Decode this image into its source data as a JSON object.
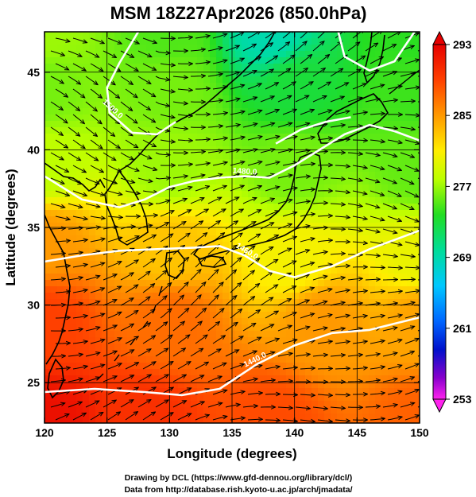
{
  "figure": {
    "title": "MSM 18Z27Apr2026 (850.0hPa)",
    "xlabel": "Longitude (degrees)",
    "ylabel": "Latitude  (degrees)",
    "credit_line1": "Drawing by DCL (https://www.gfd-dennou.org/library/dcl/)",
    "credit_line2": "Data from http://database.rish.kyoto-u.ac.jp/arch/jmadata/"
  },
  "chart_data": {
    "type": "heatmap",
    "xlim": [
      120,
      150
    ],
    "ylim": [
      22.4,
      47.6
    ],
    "xticks": [
      120,
      125,
      130,
      135,
      140,
      145,
      150
    ],
    "yticks": [
      25,
      30,
      35,
      40,
      45
    ],
    "grid": true,
    "colorbar": {
      "range": [
        253,
        293
      ],
      "tick_values": [
        293,
        285,
        277,
        269,
        261,
        253
      ],
      "tick_labels": [
        "293",
        "285",
        "277",
        "269",
        "261",
        "253"
      ]
    },
    "contours": [
      {
        "label": "1440.0",
        "points": [
          [
            120,
            24.4
          ],
          [
            124,
            24.6
          ],
          [
            128,
            24.4
          ],
          [
            131,
            24.2
          ],
          [
            134,
            24.6
          ],
          [
            137,
            26.2
          ],
          [
            140,
            27.4
          ],
          [
            143,
            28.2
          ],
          [
            146,
            28.4
          ],
          [
            148,
            28.8
          ],
          [
            150,
            29.2
          ]
        ]
      },
      {
        "label": "1460.0",
        "points": [
          [
            120,
            32.8
          ],
          [
            123,
            33.2
          ],
          [
            126,
            33.5
          ],
          [
            129,
            33.6
          ],
          [
            132,
            33.7
          ],
          [
            134,
            33.8
          ],
          [
            136,
            33.2
          ],
          [
            138,
            32.2
          ],
          [
            140,
            31.8
          ],
          [
            143,
            32.5
          ],
          [
            146,
            33.6
          ],
          [
            150,
            34.8
          ]
        ]
      },
      {
        "label": "1480.0",
        "points": [
          [
            120,
            38.3
          ],
          [
            123,
            36.8
          ],
          [
            126,
            36.3
          ],
          [
            128,
            36.8
          ],
          [
            130,
            37.6
          ],
          [
            132,
            38.0
          ],
          [
            134,
            38.2
          ],
          [
            136,
            38.3
          ],
          [
            138,
            38.2
          ],
          [
            140,
            39.0
          ],
          [
            142,
            40.0
          ],
          [
            144,
            41.0
          ],
          [
            146,
            41.6
          ],
          [
            148,
            41.2
          ],
          [
            150,
            40.6
          ]
        ]
      },
      {
        "label": "1500.0",
        "points": [
          [
            127.5,
            47.6
          ],
          [
            126,
            45.6
          ],
          [
            125,
            44.0
          ],
          [
            125.2,
            42.4
          ],
          [
            127,
            41.1
          ],
          [
            129,
            41.0
          ],
          [
            130.5,
            41.8
          ]
        ]
      },
      {
        "label": "",
        "points": [
          [
            138.5,
            40.4
          ],
          [
            140.5,
            41.3
          ],
          [
            142.5,
            41.8
          ],
          [
            144.5,
            42.1
          ]
        ]
      },
      {
        "label": "",
        "points": [
          [
            143.5,
            47.6
          ],
          [
            144,
            46.0
          ],
          [
            146,
            45.1
          ],
          [
            148,
            45.7
          ],
          [
            149.6,
            47.6
          ]
        ]
      }
    ],
    "temperature_anchors": [
      {
        "lon": 120,
        "lat": 22.4,
        "t": 292
      },
      {
        "lon": 128,
        "lat": 22.4,
        "t": 290
      },
      {
        "lon": 138,
        "lat": 22.4,
        "t": 288.5
      },
      {
        "lon": 150,
        "lat": 22.4,
        "t": 287.5
      },
      {
        "lon": 120,
        "lat": 29,
        "t": 289
      },
      {
        "lon": 130,
        "lat": 29,
        "t": 287
      },
      {
        "lon": 142,
        "lat": 29,
        "t": 285
      },
      {
        "lon": 150,
        "lat": 29,
        "t": 284.5
      },
      {
        "lon": 120,
        "lat": 34,
        "t": 285
      },
      {
        "lon": 130,
        "lat": 33.5,
        "t": 283
      },
      {
        "lon": 140,
        "lat": 33,
        "t": 280.5
      },
      {
        "lon": 150,
        "lat": 33,
        "t": 280
      },
      {
        "lon": 120,
        "lat": 39,
        "t": 278
      },
      {
        "lon": 130,
        "lat": 39,
        "t": 277
      },
      {
        "lon": 140,
        "lat": 39,
        "t": 276
      },
      {
        "lon": 150,
        "lat": 39,
        "t": 275.5
      },
      {
        "lon": 120,
        "lat": 44,
        "t": 276
      },
      {
        "lon": 130,
        "lat": 44,
        "t": 276
      },
      {
        "lon": 140,
        "lat": 44,
        "t": 273
      },
      {
        "lon": 150,
        "lat": 44,
        "t": 274.5
      },
      {
        "lon": 120,
        "lat": 47.6,
        "t": 277
      },
      {
        "lon": 130,
        "lat": 47.6,
        "t": 275
      },
      {
        "lon": 138,
        "lat": 47.6,
        "t": 269
      },
      {
        "lon": 150,
        "lat": 47.6,
        "t": 274
      }
    ]
  }
}
